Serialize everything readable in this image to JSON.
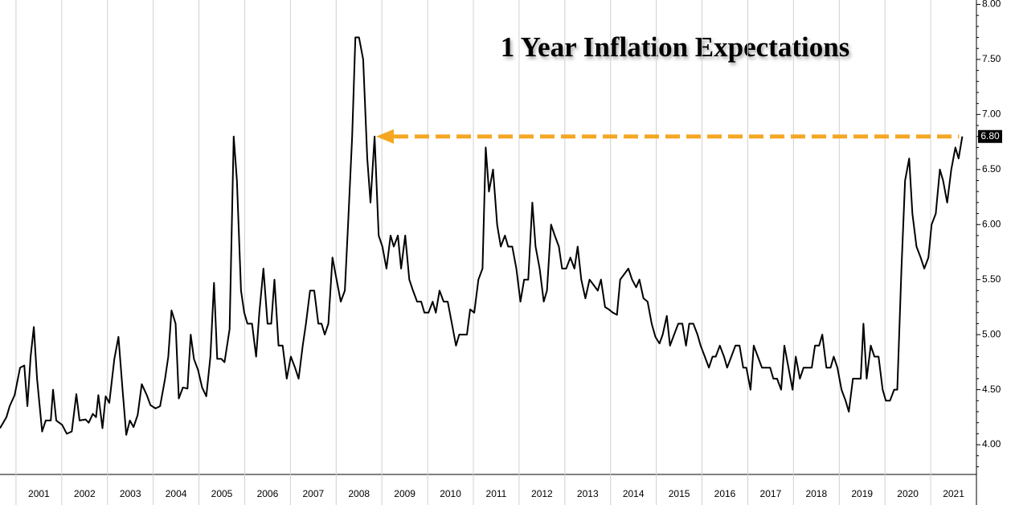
{
  "chart_data": {
    "type": "line",
    "title": "1 Year Inflation Expectations",
    "color": "#000000",
    "annotation_color": "#f5a623",
    "last_value_label": "6.80",
    "x": [
      2000.65,
      2000.79,
      2000.86,
      2000.97,
      2001.09,
      2001.18,
      2001.25,
      2001.32,
      2001.39,
      2001.46,
      2001.57,
      2001.65,
      2001.76,
      2001.81,
      2001.88,
      2002.01,
      2002.11,
      2002.22,
      2002.32,
      2002.39,
      2002.52,
      2002.59,
      2002.68,
      2002.75,
      2002.8,
      2002.89,
      2002.96,
      2003.04,
      2003.15,
      2003.24,
      2003.33,
      2003.41,
      2003.49,
      2003.57,
      2003.66,
      2003.75,
      2003.86,
      2003.94,
      2004.05,
      2004.15,
      2004.26,
      2004.33,
      2004.4,
      2004.49,
      2004.56,
      2004.65,
      2004.75,
      2004.82,
      2004.89,
      2004.98,
      2005.07,
      2005.16,
      2005.25,
      2005.33,
      2005.4,
      2005.49,
      2005.56,
      2005.67,
      2005.76,
      2005.83,
      2005.92,
      2005.99,
      2006.06,
      2006.16,
      2006.25,
      2006.32,
      2006.41,
      2006.5,
      2006.58,
      2006.65,
      2006.74,
      2006.83,
      2006.92,
      2007.01,
      2007.1,
      2007.18,
      2007.27,
      2007.34,
      2007.43,
      2007.52,
      2007.61,
      2007.68,
      2007.75,
      2007.83,
      2007.92,
      2008.01,
      2008.1,
      2008.19,
      2008.26,
      2008.35,
      2008.42,
      2008.5,
      2008.59,
      2008.68,
      2008.75,
      2008.84,
      2008.93,
      2009.01,
      2009.1,
      2009.19,
      2009.26,
      2009.35,
      2009.42,
      2009.51,
      2009.6,
      2009.68,
      2009.77,
      2009.86,
      2009.93,
      2010.02,
      2010.11,
      2010.18,
      2010.26,
      2010.35,
      2010.44,
      2010.53,
      2010.62,
      2010.69,
      2010.78,
      2010.86,
      2010.93,
      2011.02,
      2011.11,
      2011.2,
      2011.27,
      2011.34,
      2011.43,
      2011.52,
      2011.6,
      2011.69,
      2011.76,
      2011.85,
      2011.94,
      2012.03,
      2012.11,
      2012.2,
      2012.29,
      2012.36,
      2012.45,
      2012.54,
      2012.61,
      2012.7,
      2012.78,
      2012.87,
      2012.94,
      2013.03,
      2013.12,
      2013.21,
      2013.28,
      2013.36,
      2013.45,
      2013.54,
      2013.63,
      2013.72,
      2013.79,
      2013.88,
      2013.96,
      2014.05,
      2014.14,
      2014.21,
      2014.3,
      2014.39,
      2014.47,
      2014.56,
      2014.63,
      2014.72,
      2014.81,
      2014.9,
      2014.98,
      2015.07,
      2015.14,
      2015.23,
      2015.3,
      2015.39,
      2015.48,
      2015.57,
      2015.65,
      2015.72,
      2015.81,
      2015.9,
      2015.97,
      2016.06,
      2016.15,
      2016.23,
      2016.3,
      2016.39,
      2016.48,
      2016.55,
      2016.64,
      2016.73,
      2016.82,
      2016.9,
      2016.97,
      2017.06,
      2017.13,
      2017.22,
      2017.31,
      2017.4,
      2017.49,
      2017.56,
      2017.64,
      2017.73,
      2017.8,
      2017.89,
      2017.98,
      2018.05,
      2018.14,
      2018.22,
      2018.31,
      2018.4,
      2018.47,
      2018.56,
      2018.63,
      2018.72,
      2018.81,
      2018.88,
      2018.96,
      2019.05,
      2019.14,
      2019.21,
      2019.3,
      2019.39,
      2019.47,
      2019.53,
      2019.6,
      2019.69,
      2019.77,
      2019.86,
      2019.95,
      2020.02,
      2020.11,
      2020.2,
      2020.27,
      2020.36,
      2020.44,
      2020.53,
      2020.6,
      2020.69,
      2020.78,
      2020.86,
      2020.95,
      2021.02,
      2021.11,
      2021.2,
      2021.27,
      2021.36,
      2021.45,
      2021.54,
      2021.61,
      2021.69
    ],
    "values": [
      4.15,
      4.25,
      4.35,
      4.45,
      4.7,
      4.72,
      4.35,
      4.8,
      5.07,
      4.6,
      4.12,
      4.22,
      4.22,
      4.5,
      4.22,
      4.18,
      4.1,
      4.12,
      4.46,
      4.22,
      4.23,
      4.2,
      4.28,
      4.25,
      4.45,
      4.15,
      4.44,
      4.38,
      4.78,
      4.98,
      4.5,
      4.09,
      4.22,
      4.16,
      4.27,
      4.55,
      4.45,
      4.36,
      4.33,
      4.35,
      4.6,
      4.8,
      5.22,
      5.1,
      4.42,
      4.52,
      4.51,
      5.0,
      4.78,
      4.68,
      4.52,
      4.44,
      4.8,
      5.47,
      4.78,
      4.78,
      4.75,
      5.05,
      6.8,
      6.4,
      5.4,
      5.2,
      5.1,
      5.1,
      4.8,
      5.2,
      5.6,
      5.1,
      5.1,
      5.5,
      4.9,
      4.9,
      4.6,
      4.8,
      4.7,
      4.6,
      4.9,
      5.1,
      5.4,
      5.4,
      5.1,
      5.1,
      5.0,
      5.1,
      5.7,
      5.5,
      5.3,
      5.4,
      6.0,
      6.8,
      7.7,
      7.7,
      7.5,
      6.6,
      6.2,
      6.8,
      5.9,
      5.8,
      5.6,
      5.9,
      5.8,
      5.9,
      5.6,
      5.9,
      5.5,
      5.4,
      5.3,
      5.3,
      5.2,
      5.2,
      5.3,
      5.2,
      5.4,
      5.3,
      5.3,
      5.1,
      4.9,
      5.0,
      5.0,
      5.0,
      5.23,
      5.2,
      5.5,
      5.6,
      6.7,
      6.3,
      6.5,
      6.0,
      5.8,
      5.9,
      5.8,
      5.8,
      5.6,
      5.3,
      5.5,
      5.5,
      6.2,
      5.8,
      5.6,
      5.3,
      5.4,
      6.0,
      5.9,
      5.8,
      5.6,
      5.6,
      5.7,
      5.6,
      5.8,
      5.5,
      5.33,
      5.5,
      5.45,
      5.4,
      5.5,
      5.25,
      5.23,
      5.2,
      5.18,
      5.5,
      5.55,
      5.6,
      5.5,
      5.43,
      5.5,
      5.33,
      5.3,
      5.1,
      4.98,
      4.92,
      5.0,
      5.17,
      4.9,
      5.0,
      5.1,
      5.1,
      4.9,
      5.1,
      5.1,
      5.0,
      4.9,
      4.8,
      4.7,
      4.8,
      4.8,
      4.9,
      4.8,
      4.7,
      4.8,
      4.9,
      4.9,
      4.7,
      4.7,
      4.5,
      4.9,
      4.8,
      4.7,
      4.7,
      4.7,
      4.6,
      4.6,
      4.5,
      4.9,
      4.7,
      4.5,
      4.8,
      4.6,
      4.7,
      4.7,
      4.7,
      4.9,
      4.9,
      5.0,
      4.7,
      4.7,
      4.8,
      4.7,
      4.5,
      4.4,
      4.3,
      4.6,
      4.6,
      4.6,
      5.1,
      4.6,
      4.9,
      4.8,
      4.8,
      4.5,
      4.4,
      4.4,
      4.5,
      4.5,
      5.6,
      6.4,
      6.6,
      6.1,
      5.8,
      5.7,
      5.6,
      5.7,
      6.0,
      6.1,
      6.5,
      6.4,
      6.2,
      6.5,
      6.7,
      6.6,
      6.8
    ],
    "xlim": [
      2000.65,
      2022.0
    ],
    "xticks": [
      2001,
      2002,
      2003,
      2004,
      2005,
      2006,
      2007,
      2008,
      2009,
      2010,
      2011,
      2012,
      2013,
      2014,
      2015,
      2016,
      2017,
      2018,
      2019,
      2020,
      2021
    ],
    "ylim": [
      3.73,
      8.04
    ],
    "yticks": [
      {
        "value": 4,
        "label": "4.00"
      },
      {
        "value": 4.5,
        "label": "4.50"
      },
      {
        "value": 5,
        "label": "5.00"
      },
      {
        "value": 5.5,
        "label": "5.50"
      },
      {
        "value": 6,
        "label": "6.00"
      },
      {
        "value": 6.5,
        "label": "6.50"
      },
      {
        "value": 7,
        "label": "7.00"
      },
      {
        "value": 7.5,
        "label": "7.50"
      },
      {
        "value": 8,
        "label": "8.00"
      }
    ],
    "y_axis_side": "right",
    "grid": "x"
  }
}
